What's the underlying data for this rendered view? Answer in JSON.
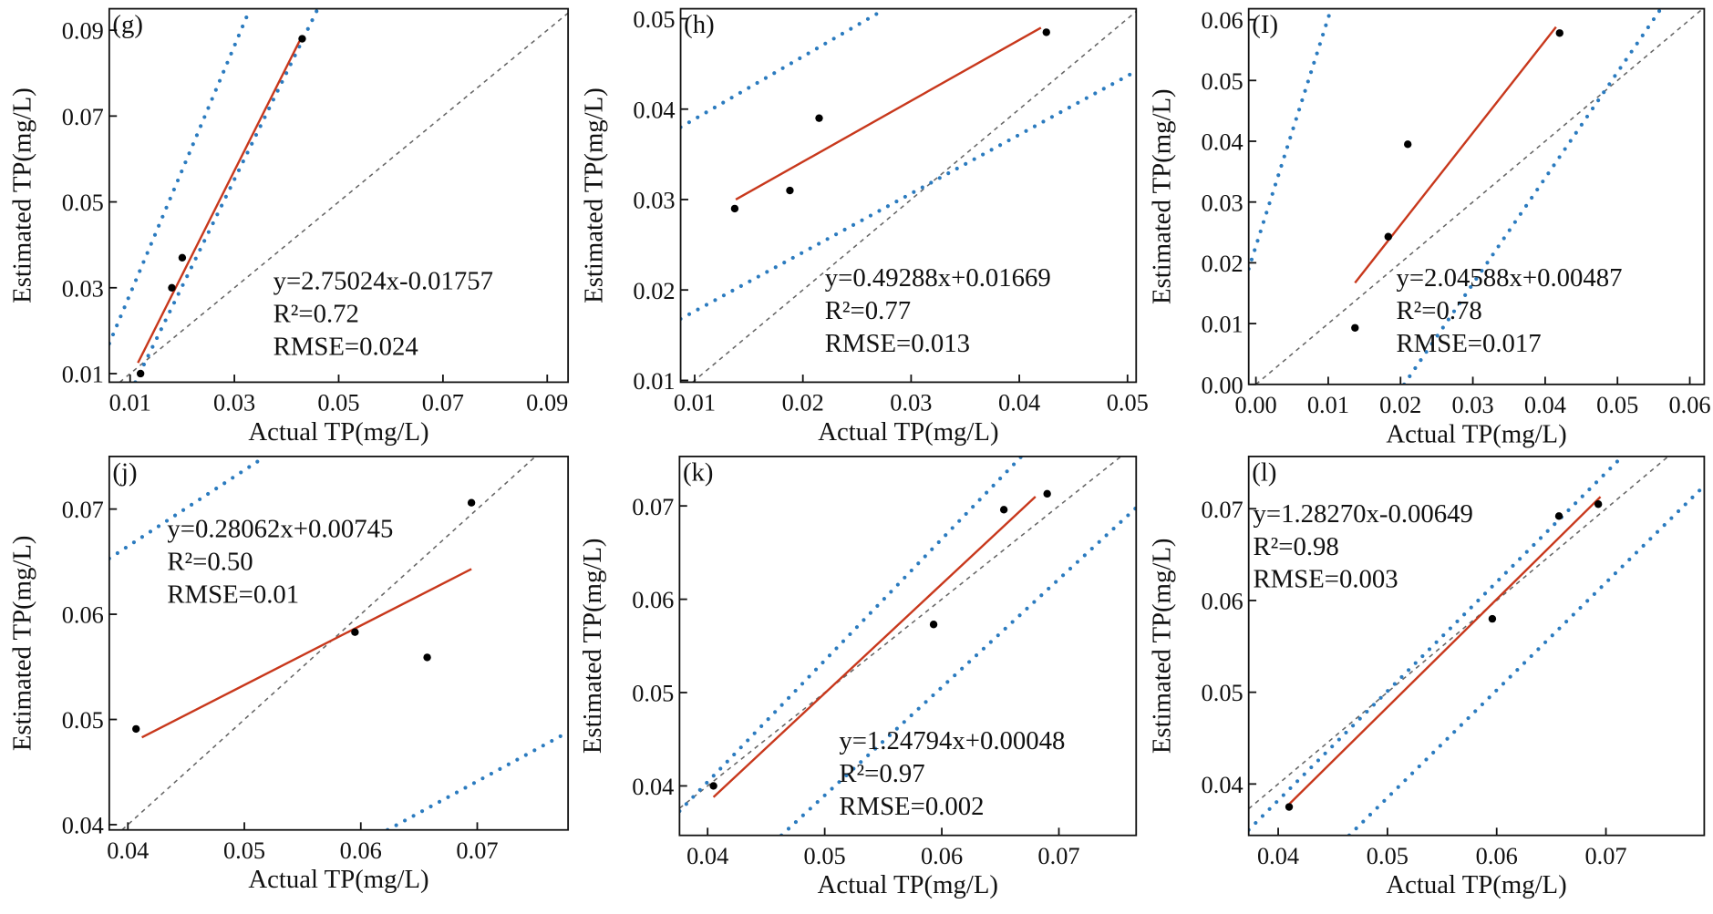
{
  "chart_data": [
    {
      "type": "scatter",
      "title": "(g)",
      "x_label": "Actual TP(mg/L)",
      "y_label": "Estimated TP(mg/L)",
      "equation": "y=2.75024x-0.01757",
      "r2": "R²=0.72",
      "rmse": "RMSE=0.024",
      "xlim": [
        0.006,
        0.094
      ],
      "ylim": [
        0.008,
        0.095
      ],
      "xticks": [
        0.01,
        0.03,
        0.05,
        0.07,
        0.09
      ],
      "yticks": [
        0.01,
        0.03,
        0.05,
        0.07,
        0.09
      ],
      "color": "#000000",
      "x": [
        0.012,
        0.018,
        0.02,
        0.043
      ],
      "y": [
        0.01,
        0.03,
        0.037,
        0.088
      ],
      "fit": {
        "color": "#c8381c",
        "x": [
          0.0115,
          0.0425
        ],
        "y": [
          0.0125,
          0.0875
        ]
      },
      "bounds": {
        "color": "#2b7bbf",
        "lines": [
          {
            "x": [
              0.006,
              0.033
            ],
            "y": [
              0.017,
              0.095
            ]
          },
          {
            "x": [
              0.011,
              0.046
            ],
            "y": [
              0.008,
              0.095
            ]
          }
        ]
      },
      "reference_color": "#666666"
    },
    {
      "type": "scatter",
      "title": "(h)",
      "x_label": "Actual TP(mg/L)",
      "y_label": "Estimated TP(mg/L)",
      "equation": "y=0.49288x+0.01669",
      "r2": "R²=0.77",
      "rmse": "RMSE=0.013",
      "xlim": [
        0.0087,
        0.0508
      ],
      "ylim": [
        0.0098,
        0.0511
      ],
      "xticks": [
        0.01,
        0.02,
        0.03,
        0.04,
        0.05
      ],
      "yticks": [
        0.01,
        0.02,
        0.03,
        0.04,
        0.05
      ],
      "color": "#000000",
      "x": [
        0.0137,
        0.0188,
        0.0215,
        0.0425
      ],
      "y": [
        0.029,
        0.031,
        0.039,
        0.0485
      ],
      "fit": {
        "color": "#c8381c",
        "x": [
          0.0138,
          0.042
        ],
        "y": [
          0.03,
          0.049
        ]
      },
      "bounds": {
        "color": "#2b7bbf",
        "lines": [
          {
            "x": [
              0.0087,
              0.0275
            ],
            "y": [
              0.038,
              0.051
            ]
          },
          {
            "x": [
              0.0087,
              0.0508
            ],
            "y": [
              0.0168,
              0.0442
            ]
          }
        ]
      },
      "reference_color": "#666666"
    },
    {
      "type": "scatter",
      "title": "(I)",
      "x_label": "Actual TP(mg/L)",
      "y_label": "Estimated TP(mg/L)",
      "equation": "y=2.04588x+0.00487",
      "r2": "R²=0.78",
      "rmse": "RMSE=0.017",
      "xlim": [
        -0.001,
        0.062
      ],
      "ylim": [
        0,
        0.0618
      ],
      "xticks": [
        {
          "value": 0,
          "label": "0.00"
        },
        0.01,
        0.02,
        0.03,
        0.04,
        0.05,
        0.06
      ],
      "yticks": [
        {
          "value": 0,
          "label": "0.00"
        },
        0.01,
        0.02,
        0.03,
        0.04,
        0.05,
        0.06
      ],
      "color": "#000000",
      "x": [
        0.0137,
        0.0183,
        0.021,
        0.042
      ],
      "y": [
        0.0093,
        0.0243,
        0.0395,
        0.0578
      ],
      "fit": {
        "color": "#c8381c",
        "x": [
          0.0137,
          0.0415
        ],
        "y": [
          0.0167,
          0.0588
        ]
      },
      "bounds": {
        "color": "#2b7bbf",
        "lines": [
          {
            "x": [
              -0.001,
              0.0104
            ],
            "y": [
              0.019,
              0.0618
            ]
          },
          {
            "x": [
              0.0205,
              0.056
            ],
            "y": [
              0,
              0.0618
            ]
          }
        ]
      },
      "reference_color": "#666666"
    },
    {
      "type": "scatter",
      "title": "(j)",
      "x_label": "Actual TP(mg/L)",
      "y_label": "Estimated TP(mg/L)",
      "equation": "y=0.28062x+0.00745",
      "r2": "R²=0.50",
      "rmse": "RMSE=0.01",
      "xlim": [
        0.0384,
        0.0778
      ],
      "ylim": [
        0.0395,
        0.075
      ],
      "xticks": [
        0.04,
        0.05,
        0.06,
        0.07
      ],
      "yticks": [
        0.04,
        0.05,
        0.06,
        0.07
      ],
      "color": "#000000",
      "x": [
        0.0407,
        0.0595,
        0.0657,
        0.0695
      ],
      "y": [
        0.0491,
        0.0583,
        0.0559,
        0.0706
      ],
      "fit": {
        "color": "#c8381c",
        "x": [
          0.0412,
          0.0695
        ],
        "y": [
          0.0483,
          0.0643
        ]
      },
      "bounds": {
        "color": "#2b7bbf",
        "lines": [
          {
            "x": [
              0.0384,
              0.0518
            ],
            "y": [
              0.0653,
              0.075
            ]
          },
          {
            "x": [
              0.0623,
              0.0778
            ],
            "y": [
              0.0395,
              0.0488
            ]
          }
        ]
      },
      "reference_color": "#666666"
    },
    {
      "type": "scatter",
      "title": "(k)",
      "x_label": "Actual TP(mg/L)",
      "y_label": "Estimated TP(mg/L)",
      "equation": "y=1.24794x+0.00048",
      "r2": "R²=0.97",
      "rmse": "RMSE=0.002",
      "xlim": [
        0.0376,
        0.0766
      ],
      "ylim": [
        0.0347,
        0.0753
      ],
      "xticks": [
        0.04,
        0.05,
        0.06,
        0.07
      ],
      "yticks": [
        0.04,
        0.05,
        0.06,
        0.07
      ],
      "color": "#000000",
      "x": [
        0.0405,
        0.0593,
        0.0653,
        0.069
      ],
      "y": [
        0.04,
        0.0573,
        0.0696,
        0.0713
      ],
      "fit": {
        "color": "#c8381c",
        "x": [
          0.0405,
          0.068
        ],
        "y": [
          0.0388,
          0.071
        ]
      },
      "bounds": {
        "color": "#2b7bbf",
        "lines": [
          {
            "x": [
              0.0376,
              0.0668
            ],
            "y": [
              0.0373,
              0.0753
            ]
          },
          {
            "x": [
              0.0463,
              0.0766
            ],
            "y": [
              0.0347,
              0.0698
            ]
          }
        ]
      },
      "reference_color": "#666666"
    },
    {
      "type": "scatter",
      "title": "(l)",
      "x_label": "Actual TP(mg/L)",
      "y_label": "Estimated TP(mg/L)",
      "equation": "y=1.28270x-0.00649",
      "r2": "R²=0.98",
      "rmse": "RMSE=0.003",
      "xlim": [
        0.0373,
        0.079
      ],
      "ylim": [
        0.0344,
        0.0757
      ],
      "xticks": [
        0.04,
        0.05,
        0.06,
        0.07
      ],
      "yticks": [
        0.04,
        0.05,
        0.06,
        0.07
      ],
      "color": "#000000",
      "x": [
        0.041,
        0.0596,
        0.0657,
        0.0693
      ],
      "y": [
        0.0375,
        0.058,
        0.0692,
        0.0705
      ],
      "fit": {
        "color": "#c8381c",
        "x": [
          0.041,
          0.0695
        ],
        "y": [
          0.0378,
          0.0713
        ]
      },
      "bounds": {
        "color": "#2b7bbf",
        "lines": [
          {
            "x": [
              0.0373,
              0.0715
            ],
            "y": [
              0.035,
              0.0757
            ]
          },
          {
            "x": [
              0.0465,
              0.079
            ],
            "y": [
              0.0344,
              0.0725
            ]
          }
        ]
      },
      "reference_color": "#666666"
    }
  ]
}
